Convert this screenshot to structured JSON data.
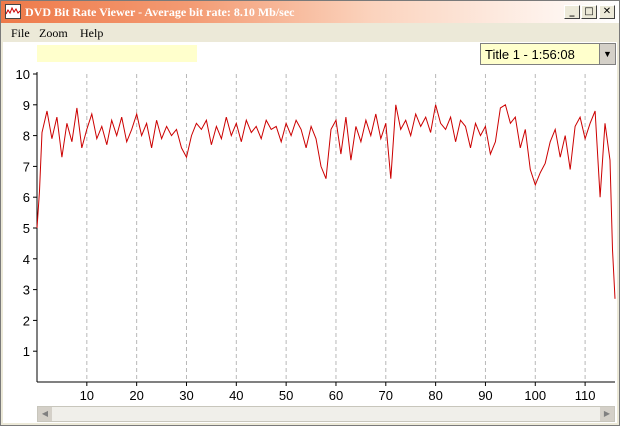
{
  "window": {
    "title": "DVD Bit Rate Viewer - Average bit rate: 8.10 Mb/sec",
    "controls": {
      "minimize": "_",
      "maximize": "□",
      "close": "✕"
    }
  },
  "menu": {
    "items": [
      "File",
      "Zoom",
      "Help"
    ]
  },
  "title_selector": {
    "value": "Title 1 - 1:56:08"
  },
  "status_box": "",
  "chart_data": {
    "type": "line",
    "title": "",
    "xlabel": "",
    "ylabel": "",
    "xlim": [
      0,
      116
    ],
    "ylim": [
      0,
      10
    ],
    "x_ticks": [
      10,
      20,
      30,
      40,
      50,
      60,
      70,
      80,
      90,
      100,
      110
    ],
    "y_ticks": [
      1,
      2,
      3,
      4,
      5,
      6,
      7,
      8,
      9,
      10
    ],
    "grid": "vertical-dashed",
    "series": [
      {
        "color": "#cc0000",
        "x": [
          0,
          0.5,
          1,
          2,
          3,
          4,
          5,
          6,
          7,
          8,
          9,
          10,
          11,
          12,
          13,
          14,
          15,
          16,
          17,
          18,
          19,
          20,
          21,
          22,
          23,
          24,
          25,
          26,
          27,
          28,
          29,
          30,
          31,
          32,
          33,
          34,
          35,
          36,
          37,
          38,
          39,
          40,
          41,
          42,
          43,
          44,
          45,
          46,
          47,
          48,
          49,
          50,
          51,
          52,
          53,
          54,
          55,
          56,
          57,
          58,
          59,
          60,
          61,
          62,
          63,
          64,
          65,
          66,
          67,
          68,
          69,
          70,
          71,
          72,
          73,
          74,
          75,
          76,
          77,
          78,
          79,
          80,
          81,
          82,
          83,
          84,
          85,
          86,
          87,
          88,
          89,
          90,
          91,
          92,
          93,
          94,
          95,
          96,
          97,
          98,
          99,
          100,
          101,
          102,
          103,
          104,
          105,
          106,
          107,
          108,
          109,
          110,
          111,
          112,
          113,
          114,
          115,
          115.5,
          116
        ],
        "y": [
          5.0,
          6.2,
          8.1,
          8.8,
          7.9,
          8.6,
          7.3,
          8.4,
          7.8,
          8.9,
          7.6,
          8.2,
          8.7,
          7.9,
          8.3,
          7.7,
          8.5,
          8.0,
          8.6,
          7.8,
          8.2,
          8.7,
          8.0,
          8.4,
          7.6,
          8.5,
          7.9,
          8.3,
          8.0,
          8.2,
          7.6,
          7.3,
          8.0,
          8.4,
          8.2,
          8.5,
          7.7,
          8.3,
          7.9,
          8.6,
          8.0,
          8.4,
          7.8,
          8.5,
          8.1,
          8.3,
          7.9,
          8.5,
          8.2,
          8.3,
          7.8,
          8.4,
          8.0,
          8.5,
          8.2,
          7.6,
          8.3,
          7.9,
          7.0,
          6.6,
          8.2,
          8.5,
          7.4,
          8.6,
          7.2,
          8.3,
          7.8,
          8.5,
          8.0,
          8.7,
          7.9,
          8.4,
          6.6,
          9.0,
          8.2,
          8.5,
          8.0,
          8.7,
          8.3,
          8.6,
          8.1,
          9.0,
          8.4,
          8.2,
          8.6,
          7.8,
          8.5,
          8.3,
          7.6,
          8.4,
          8.0,
          8.3,
          7.4,
          7.8,
          8.9,
          9.0,
          8.4,
          8.6,
          7.6,
          8.2,
          6.9,
          6.4,
          6.8,
          7.1,
          7.8,
          8.2,
          7.3,
          8.0,
          6.9,
          8.3,
          8.6,
          7.9,
          8.4,
          8.8,
          6.0,
          8.4,
          7.2,
          4.3,
          2.7
        ]
      }
    ]
  }
}
